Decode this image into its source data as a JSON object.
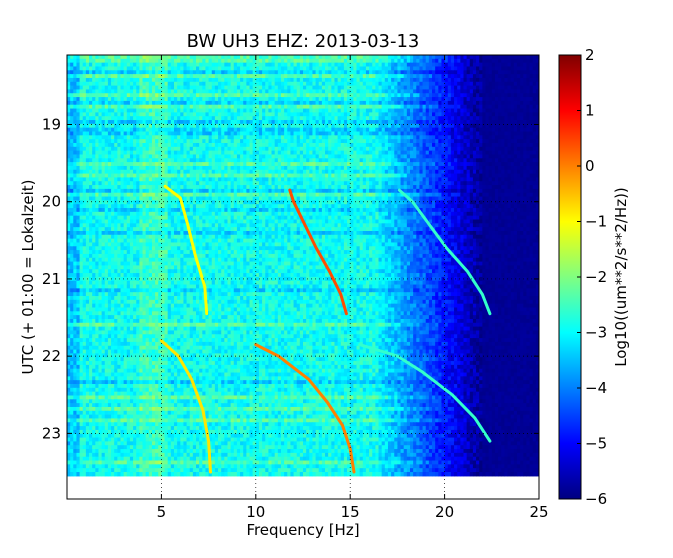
{
  "chart_data": {
    "type": "heatmap",
    "title": "BW UH3 EHZ: 2013-03-13",
    "xlabel": "Frequency [Hz]",
    "ylabel": "UTC (+ 01:00 = Lokalzeit)",
    "colorbar_label": "Log10((um**2/s**2/Hz))",
    "colormap": "jet",
    "xlim": [
      0,
      25
    ],
    "ylim": [
      18.1,
      23.85
    ],
    "y_inverted": true,
    "data_extent": {
      "x": [
        0,
        25
      ],
      "y": [
        18.1,
        23.55
      ]
    },
    "clim": [
      -6,
      2
    ],
    "x_ticks": [
      5,
      10,
      15,
      20,
      25
    ],
    "y_ticks": [
      19,
      20,
      21,
      22,
      23
    ],
    "colorbar_ticks": [
      -6,
      -5,
      -4,
      -3,
      -2,
      -1,
      0,
      1,
      2
    ],
    "grid": true,
    "harmonic_sweeps": [
      {
        "segment": "first",
        "t": [
          19.8,
          19.95,
          20.3,
          20.7,
          21.1,
          21.45
        ],
        "f": [
          5.2,
          6.0,
          6.4,
          6.8,
          7.3,
          7.4
        ],
        "level": -1.0
      },
      {
        "segment": "first",
        "t": [
          19.85,
          20.0,
          20.3,
          20.6,
          20.9,
          21.2,
          21.45
        ],
        "f": [
          11.8,
          12.0,
          12.6,
          13.2,
          13.9,
          14.5,
          14.8
        ],
        "level": 0.4
      },
      {
        "segment": "first",
        "t": [
          19.85,
          20.0,
          20.3,
          20.6,
          20.9,
          21.2,
          21.45
        ],
        "f": [
          17.6,
          18.3,
          19.2,
          20.1,
          21.2,
          22.0,
          22.4
        ],
        "level": -2.6
      },
      {
        "segment": "second",
        "t": [
          21.8,
          22.0,
          22.3,
          22.7,
          23.1,
          23.5
        ],
        "f": [
          5.0,
          5.9,
          6.6,
          7.2,
          7.5,
          7.6
        ],
        "level": -0.8
      },
      {
        "segment": "second",
        "t": [
          21.85,
          22.0,
          22.3,
          22.6,
          22.9,
          23.2,
          23.5
        ],
        "f": [
          10.0,
          11.2,
          12.8,
          13.8,
          14.6,
          15.0,
          15.2
        ],
        "level": 0.0
      },
      {
        "segment": "second",
        "t": [
          21.85,
          22.0,
          22.2,
          22.5,
          22.8,
          23.1
        ],
        "f": [
          15.5,
          17.5,
          18.8,
          20.4,
          21.6,
          22.4
        ],
        "level": -2.6
      }
    ]
  }
}
